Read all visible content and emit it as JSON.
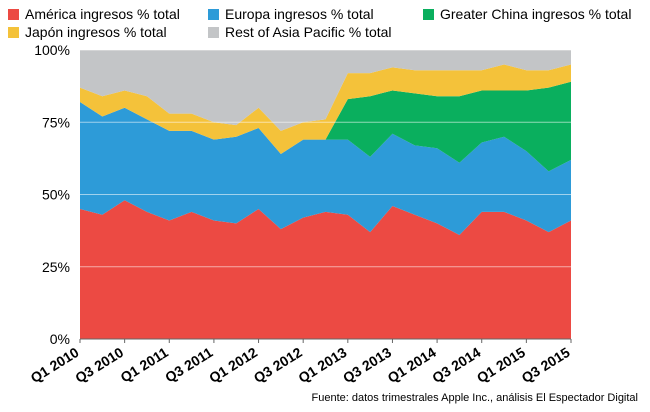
{
  "chart_data": {
    "type": "area",
    "stacked": true,
    "categories": [
      "Q1 2010",
      "Q2 2010",
      "Q3 2010",
      "Q4 2010",
      "Q1 2011",
      "Q2 2011",
      "Q3 2011",
      "Q4 2011",
      "Q1 2012",
      "Q2 2012",
      "Q3 2012",
      "Q4 2012",
      "Q1 2013",
      "Q2 2013",
      "Q3 2013",
      "Q4 2013",
      "Q1 2014",
      "Q2 2014",
      "Q3 2014",
      "Q4 2014",
      "Q1 2015",
      "Q2 2015",
      "Q3 2015"
    ],
    "x_tick_labels": [
      "Q1 2010",
      "Q3 2010",
      "Q1 2011",
      "Q3 2011",
      "Q1 2012",
      "Q3 2012",
      "Q1 2013",
      "Q3 2013",
      "Q1 2014",
      "Q3 2014",
      "Q1 2015",
      "Q3 2015"
    ],
    "y_tick_labels": [
      "0%",
      "25%",
      "50%",
      "75%",
      "100%"
    ],
    "ylim": [
      0,
      100
    ],
    "grid": true,
    "legend_position": "top",
    "series": [
      {
        "name": "América ingresos % total",
        "color": "#ec4a43",
        "values": [
          45,
          43,
          48,
          44,
          41,
          44,
          41,
          40,
          45,
          38,
          42,
          44,
          43,
          37,
          46,
          43,
          40,
          36,
          44,
          44,
          41,
          37,
          41
        ]
      },
      {
        "name": "Europa ingresos % total",
        "color": "#2d9bd8",
        "values": [
          37,
          34,
          32,
          32,
          31,
          28,
          28,
          30,
          28,
          26,
          27,
          25,
          26,
          26,
          25,
          24,
          26,
          25,
          24,
          26,
          24,
          21,
          21
        ]
      },
      {
        "name": "Greater China ingresos % total",
        "color": "#0aaf5e",
        "values": [
          0,
          0,
          0,
          0,
          0,
          0,
          0,
          0,
          0,
          0,
          0,
          0,
          14,
          21,
          15,
          18,
          18,
          23,
          18,
          16,
          21,
          29,
          27
        ]
      },
      {
        "name": "Japón ingresos % total",
        "color": "#f4c23a",
        "values": [
          5,
          7,
          6,
          8,
          6,
          6,
          6,
          4,
          7,
          8,
          6,
          7,
          9,
          8,
          8,
          8,
          9,
          9,
          7,
          9,
          7,
          6,
          6
        ]
      },
      {
        "name": "Rest of Asia Pacific % total",
        "color": "#c3c5c7",
        "values": [
          13,
          16,
          14,
          16,
          22,
          22,
          25,
          26,
          20,
          28,
          25,
          24,
          8,
          8,
          6,
          7,
          7,
          7,
          7,
          5,
          7,
          7,
          5
        ]
      }
    ],
    "source": "Fuente: datos trimestrales Apple Inc., análisis El Espectador Digital"
  }
}
